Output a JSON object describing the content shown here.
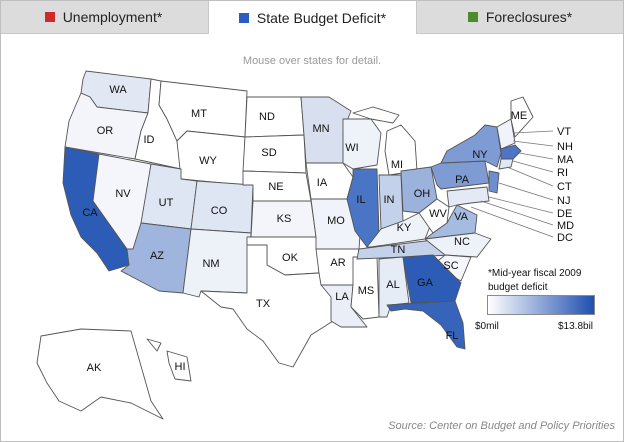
{
  "tabs": [
    {
      "label": "Unemployment*",
      "color": "#cc2b2b"
    },
    {
      "label": "State Budget Deficit*",
      "color": "#2b5fbf"
    },
    {
      "label": "Foreclosures*",
      "color": "#4d8a2e"
    }
  ],
  "active_tab": 1,
  "hint": "Mouse over states for detail.",
  "legend": {
    "title_line1": "*Mid-year fiscal 2009",
    "title_line2": "budget deficit",
    "min": "$0mil",
    "max": "$13.8bil",
    "min_color": "#ffffff",
    "max_color": "#1f4fb0"
  },
  "source": "Source: Center on Budget and Policy Priorities",
  "states": {
    "WA": "WA",
    "OR": "OR",
    "CA": "CA",
    "ID": "ID",
    "NV": "NV",
    "MT": "MT",
    "WY": "WY",
    "UT": "UT",
    "AZ": "AZ",
    "CO": "CO",
    "NM": "NM",
    "ND": "ND",
    "SD": "SD",
    "NE": "NE",
    "KS": "KS",
    "OK": "OK",
    "TX": "TX",
    "MN": "MN",
    "IA": "IA",
    "MO": "MO",
    "AR": "AR",
    "LA": "LA",
    "WI": "WI",
    "IL": "IL",
    "MS": "MS",
    "MI": "MI",
    "IN": "IN",
    "KY": "KY",
    "TN": "TN",
    "AL": "AL",
    "OH": "OH",
    "WV": "WV",
    "GA": "GA",
    "FL": "FL",
    "SC": "SC",
    "NC": "NC",
    "VA": "VA",
    "PA": "PA",
    "NY": "NY",
    "ME": "ME",
    "AK": "AK",
    "HI": "HI"
  },
  "callouts": [
    "VT",
    "NH",
    "MA",
    "RI",
    "CT",
    "NJ",
    "DE",
    "MD",
    "DC"
  ]
}
